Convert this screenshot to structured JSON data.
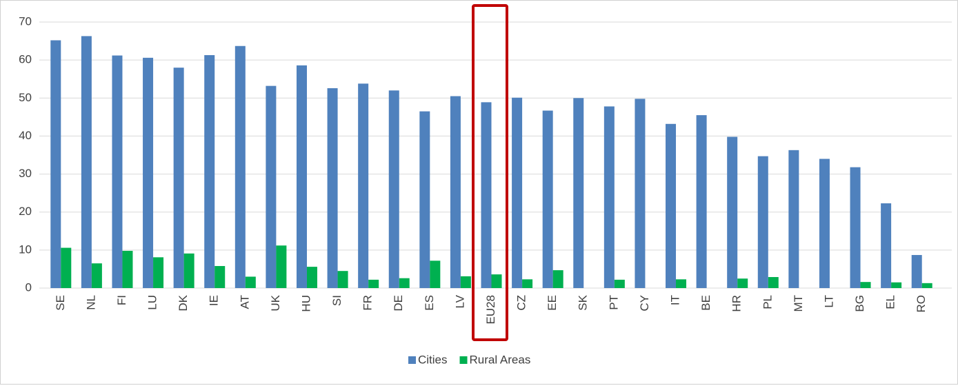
{
  "chart_data": {
    "type": "bar",
    "categories": [
      "SE",
      "NL",
      "FI",
      "LU",
      "DK",
      "IE",
      "AT",
      "UK",
      "HU",
      "SI",
      "FR",
      "DE",
      "ES",
      "LV",
      "EU28",
      "CZ",
      "EE",
      "SK",
      "PT",
      "CY",
      "IT",
      "BE",
      "HR",
      "PL",
      "MT",
      "LT",
      "BG",
      "EL",
      "RO"
    ],
    "series": [
      {
        "name": "Cities",
        "color": "#4f81bd",
        "values": [
          65.2,
          66.3,
          61.2,
          60.6,
          58.0,
          61.3,
          63.7,
          53.2,
          58.6,
          52.6,
          53.8,
          52.0,
          46.5,
          50.5,
          48.9,
          50.1,
          46.7,
          50.0,
          47.8,
          49.8,
          43.2,
          45.5,
          39.8,
          34.7,
          36.3,
          34.0,
          31.8,
          22.3,
          8.7
        ]
      },
      {
        "name": "Rural Areas",
        "color": "#00b050",
        "values": [
          10.6,
          6.5,
          9.8,
          8.1,
          9.1,
          5.8,
          3.0,
          11.2,
          5.6,
          4.5,
          2.2,
          2.6,
          7.2,
          3.1,
          3.6,
          2.3,
          4.7,
          null,
          2.2,
          null,
          2.3,
          null,
          2.5,
          2.9,
          null,
          null,
          1.6,
          1.5,
          1.3
        ]
      }
    ],
    "ylim": [
      0,
      70
    ],
    "yticks": [
      0,
      10,
      20,
      30,
      40,
      50,
      60,
      70
    ],
    "grid": true,
    "legend": "bottom"
  }
}
